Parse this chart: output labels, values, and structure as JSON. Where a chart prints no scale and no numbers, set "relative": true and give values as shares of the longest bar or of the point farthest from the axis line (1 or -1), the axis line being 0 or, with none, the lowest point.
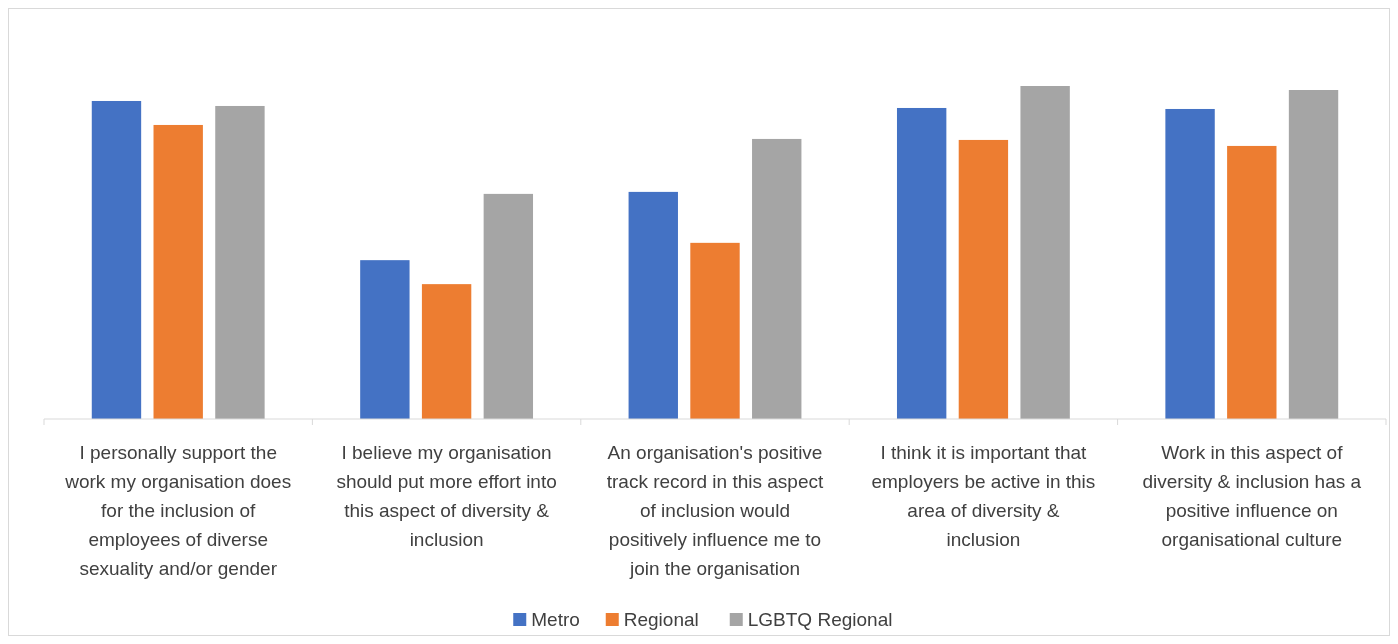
{
  "chart_data": {
    "type": "bar",
    "relative": true,
    "legend": "bottom",
    "categories": [
      "I personally support the work my organisation does for the inclusion of employees of diverse sexuality and/or gender",
      "I believe my organisation should put more effort into this aspect of diversity & inclusion",
      "An organisation's positive track record in this aspect of inclusion would positively influence me to join the organisation",
      "I think it is important that employers be active in this area of diversity & inclusion",
      "Work in this aspect of diversity & inclusion has a positive influence on organisational culture"
    ],
    "series": [
      {
        "name": "Metro",
        "color": "#4472c4",
        "values": [
          0.955,
          0.477,
          0.682,
          0.934,
          0.931
        ]
      },
      {
        "name": "Regional",
        "color": "#ed7d31",
        "values": [
          0.883,
          0.405,
          0.529,
          0.838,
          0.82
        ]
      },
      {
        "name": "LGBTQ Regional",
        "color": "#a5a5a5",
        "values": [
          0.94,
          0.676,
          0.841,
          1,
          0.988
        ]
      }
    ]
  }
}
